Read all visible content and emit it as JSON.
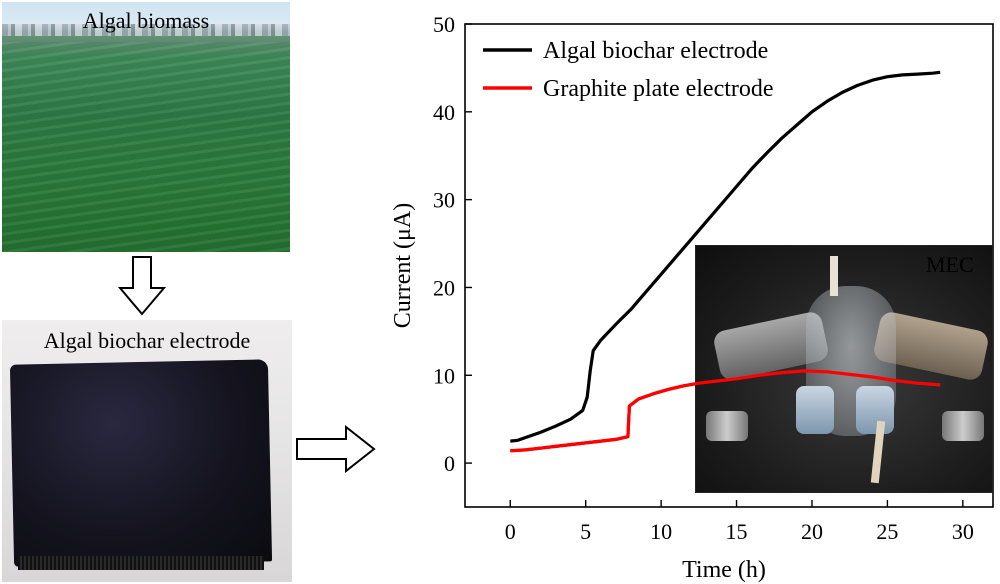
{
  "photos": {
    "algae_label": "Algal biomass",
    "electrode_label": "Algal biochar electrode",
    "inset_label": "MEC"
  },
  "colors": {
    "algal_series": "#000000",
    "graphite_series": "#ff0000"
  },
  "chart_data": {
    "type": "line",
    "title": "",
    "xlabel": "Time (h)",
    "ylabel": "Current (μA)",
    "xlim": [
      -3,
      32
    ],
    "ylim": [
      -5,
      50
    ],
    "xticks": [
      0,
      5,
      10,
      15,
      20,
      25,
      30
    ],
    "yticks": [
      0,
      10,
      20,
      30,
      40,
      50
    ],
    "grid": false,
    "legend_position": "top-left",
    "series": [
      {
        "name": "Algal biochar electrode",
        "color": "#000000",
        "points": [
          [
            0,
            2.5
          ],
          [
            0.5,
            2.6
          ],
          [
            1,
            2.9
          ],
          [
            2,
            3.5
          ],
          [
            3,
            4.2
          ],
          [
            4,
            5.0
          ],
          [
            4.8,
            6.0
          ],
          [
            5.1,
            7.5
          ],
          [
            5.3,
            10.5
          ],
          [
            5.5,
            12.8
          ],
          [
            6,
            14
          ],
          [
            7,
            15.8
          ],
          [
            8,
            17.5
          ],
          [
            9,
            19.5
          ],
          [
            10,
            21.5
          ],
          [
            11,
            23.5
          ],
          [
            12,
            25.5
          ],
          [
            13,
            27.5
          ],
          [
            14,
            29.5
          ],
          [
            15,
            31.5
          ],
          [
            16,
            33.5
          ],
          [
            17,
            35.3
          ],
          [
            18,
            37
          ],
          [
            19,
            38.5
          ],
          [
            20,
            40
          ],
          [
            21,
            41.2
          ],
          [
            22,
            42.2
          ],
          [
            23,
            43
          ],
          [
            24,
            43.6
          ],
          [
            25,
            44
          ],
          [
            26,
            44.2
          ],
          [
            27,
            44.3
          ],
          [
            28,
            44.4
          ],
          [
            28.5,
            44.5
          ]
        ]
      },
      {
        "name": "Graphite plate electrode",
        "color": "#ff0000",
        "points": [
          [
            0,
            1.4
          ],
          [
            1,
            1.5
          ],
          [
            2,
            1.7
          ],
          [
            3,
            1.9
          ],
          [
            4,
            2.1
          ],
          [
            5,
            2.3
          ],
          [
            6,
            2.5
          ],
          [
            7,
            2.7
          ],
          [
            7.8,
            3.0
          ],
          [
            7.9,
            6.5
          ],
          [
            8.5,
            7.3
          ],
          [
            9.5,
            7.9
          ],
          [
            10.5,
            8.4
          ],
          [
            11.5,
            8.8
          ],
          [
            12.5,
            9.1
          ],
          [
            13.5,
            9.3
          ],
          [
            15,
            9.6
          ],
          [
            16.5,
            10
          ],
          [
            18,
            10.3
          ],
          [
            19.5,
            10.5
          ],
          [
            21,
            10.4
          ],
          [
            22.5,
            10.1
          ],
          [
            24,
            9.8
          ],
          [
            25.5,
            9.4
          ],
          [
            27,
            9.1
          ],
          [
            28.5,
            8.9
          ]
        ]
      }
    ]
  }
}
